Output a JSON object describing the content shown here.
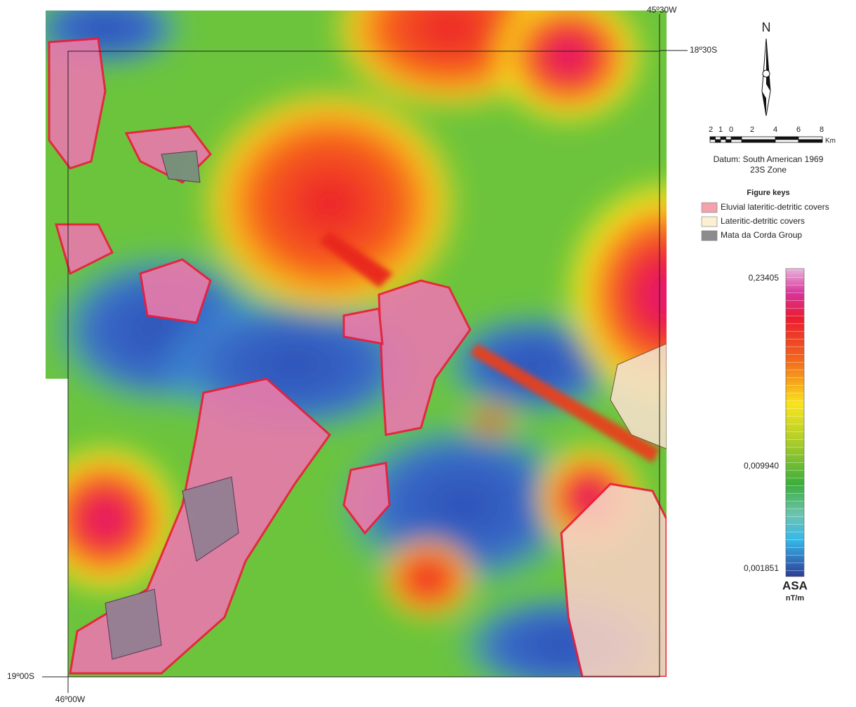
{
  "coordinates": {
    "top_right": "45º30W",
    "right_top": "18º30S",
    "left_bottom": "19º00S",
    "bottom_left": "46º00W"
  },
  "north": "N",
  "scale": {
    "labels": [
      "2",
      "1",
      "0",
      "2",
      "4",
      "6",
      "8"
    ],
    "unit": "Km"
  },
  "datum": [
    "Datum: South American 1969",
    "23S Zone"
  ],
  "legend": {
    "title": "Figure keys",
    "items": [
      {
        "label": "Eluvial lateritic-detritic covers",
        "color": "#f4a3ac"
      },
      {
        "label": "Lateritic-detritic covers",
        "color": "#fdf0d2"
      },
      {
        "label": "Mata da Corda Group",
        "color": "#8c8c8c"
      }
    ]
  },
  "colorbar": {
    "labels": [
      "0,23405",
      "0,009940",
      "0,001851"
    ],
    "title": "ASA",
    "unit": "nT/m"
  }
}
